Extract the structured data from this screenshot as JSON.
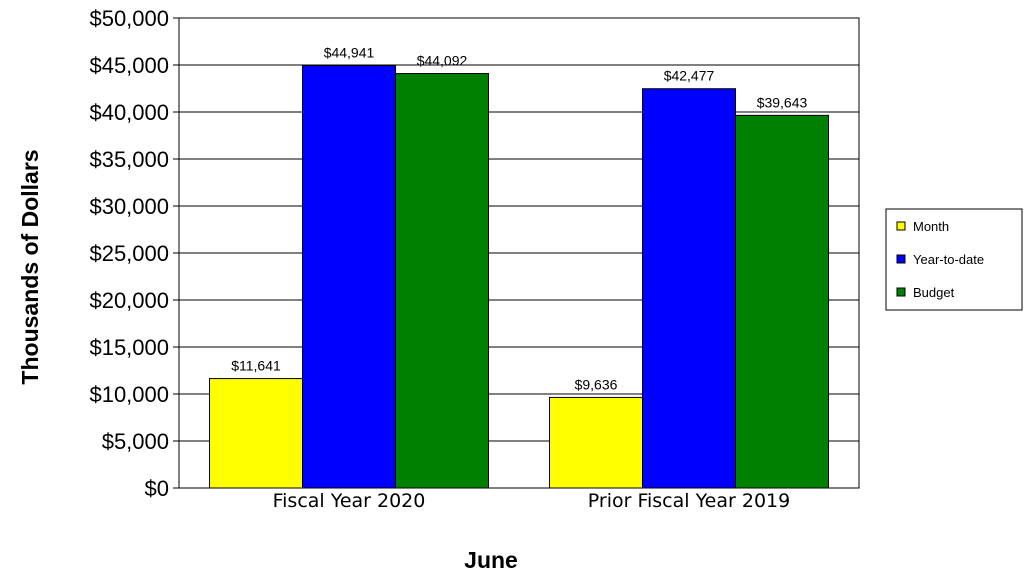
{
  "chart_data": {
    "type": "bar",
    "title": "",
    "xlabel": "June",
    "ylabel": "Thousands of Dollars",
    "ylim": [
      0,
      50000
    ],
    "ytick_step": 5000,
    "ytick_labels": [
      "$0",
      "$5,000",
      "$10,000",
      "$15,000",
      "$20,000",
      "$25,000",
      "$30,000",
      "$35,000",
      "$40,000",
      "$45,000",
      "$50,000"
    ],
    "categories": [
      "Fiscal Year 2020",
      "Prior Fiscal Year 2019"
    ],
    "series": [
      {
        "name": "Month",
        "color": "#ffff00",
        "values": [
          11641,
          9636
        ],
        "labels": [
          "$11,641",
          "$9,636"
        ]
      },
      {
        "name": "Year-to-date",
        "color": "#0000ff",
        "values": [
          44941,
          42477
        ],
        "labels": [
          "$44,941",
          "$42,477"
        ]
      },
      {
        "name": "Budget",
        "color": "#008000",
        "values": [
          44092,
          39643
        ],
        "labels": [
          "$44,092",
          "$39,643"
        ]
      }
    ],
    "grid": true,
    "legend_position": "right"
  }
}
